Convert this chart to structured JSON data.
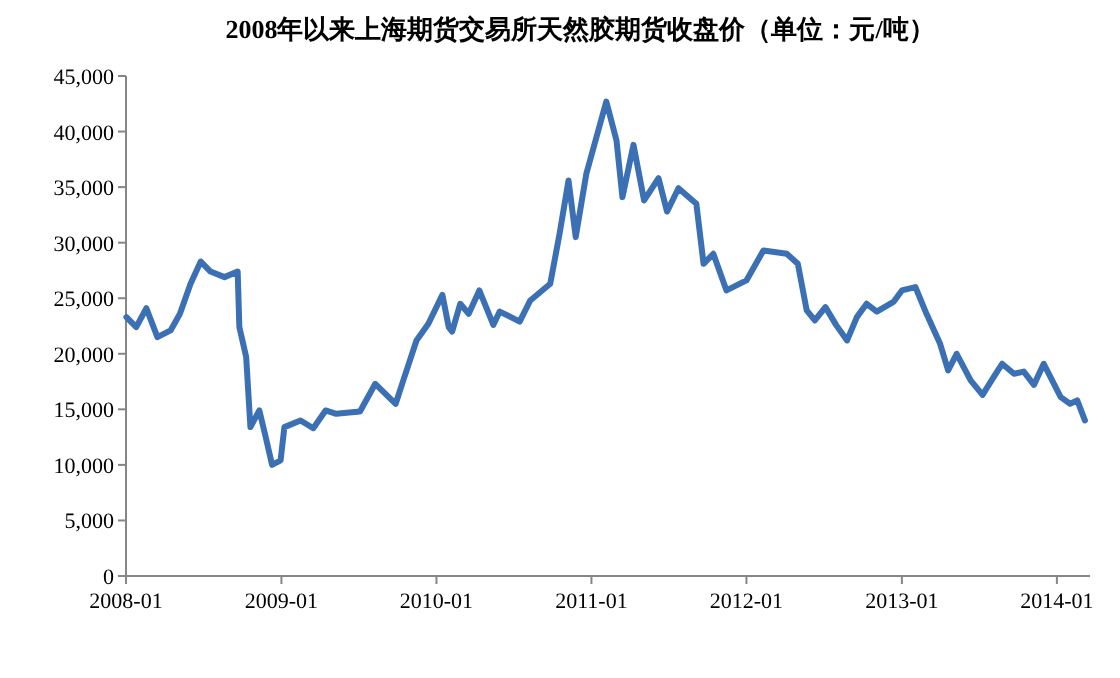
{
  "chart_data": {
    "type": "line",
    "title": "2008年以来上海期货交易所天然胶期货收盘价（单位：元/吨）",
    "xlim": [
      "2008-01-01",
      "2014-03-20"
    ],
    "xticks": [
      {
        "value": "2008-01-01",
        "label": "2008-01"
      },
      {
        "value": "2009-01-01",
        "label": "2009-01"
      },
      {
        "value": "2010-01-01",
        "label": "2010-01"
      },
      {
        "value": "2011-01-01",
        "label": "2011-01"
      },
      {
        "value": "2012-01-01",
        "label": "2012-01"
      },
      {
        "value": "2013-01-01",
        "label": "2013-01"
      },
      {
        "value": "2014-01-01",
        "label": "2014-01"
      }
    ],
    "ylim": [
      0,
      45000
    ],
    "yticks": [
      0,
      {
        "value": 5000,
        "label": "5,000"
      },
      {
        "value": 10000,
        "label": "10,000"
      },
      {
        "value": 15000,
        "label": "15,000"
      },
      {
        "value": 20000,
        "label": "20,000"
      },
      {
        "value": 25000,
        "label": "25,000"
      },
      {
        "value": 30000,
        "label": "30,000"
      },
      {
        "value": 35000,
        "label": "35,000"
      },
      {
        "value": 40000,
        "label": "40,000"
      },
      {
        "value": 45000,
        "label": "45,000"
      }
    ],
    "marker": "none",
    "line_style": "solid",
    "series": [
      {
        "color": "#3c70b4",
        "x": [
          "2008-01-02",
          "2008-01-25",
          "2008-02-18",
          "2008-03-15",
          "2008-04-15",
          "2008-05-07",
          "2008-06-01",
          "2008-06-25",
          "2008-07-18",
          "2008-08-20",
          "2008-09-20",
          "2008-09-24",
          "2008-10-10",
          "2008-10-20",
          "2008-11-10",
          "2008-11-25",
          "2008-12-10",
          "2008-12-30",
          "2009-01-08",
          "2009-02-15",
          "2009-03-17",
          "2009-04-15",
          "2009-05-10",
          "2009-07-05",
          "2009-08-10",
          "2009-09-27",
          "2009-10-15",
          "2009-11-15",
          "2009-12-13",
          "2010-01-15",
          "2010-01-30",
          "2010-02-07",
          "2010-02-26",
          "2010-03-18",
          "2010-04-12",
          "2010-05-15",
          "2010-05-30",
          "2010-07-16",
          "2010-08-10",
          "2010-09-26",
          "2010-10-18",
          "2010-11-08",
          "2010-11-25",
          "2010-12-20",
          "2011-02-05",
          "2011-03-01",
          "2011-03-15",
          "2011-04-10",
          "2011-05-05",
          "2011-06-08",
          "2011-06-28",
          "2011-07-25",
          "2011-09-05",
          "2011-09-22",
          "2011-10-15",
          "2011-11-15",
          "2012-01-01",
          "2012-02-10",
          "2012-04-05",
          "2012-05-01",
          "2012-05-22",
          "2012-06-10",
          "2012-07-05",
          "2012-07-30",
          "2012-08-25",
          "2012-09-17",
          "2012-10-10",
          "2012-11-03",
          "2012-12-13",
          "2013-01-01",
          "2013-02-02",
          "2013-02-28",
          "2013-04-01",
          "2013-04-20",
          "2013-05-10",
          "2013-06-12",
          "2013-07-10",
          "2013-08-05",
          "2013-08-25",
          "2013-09-22",
          "2013-10-15",
          "2013-11-08",
          "2013-12-01",
          "2014-01-10",
          "2014-02-01",
          "2014-02-18",
          "2014-03-08"
        ],
        "values": [
          23300,
          22400,
          24100,
          21500,
          22100,
          23600,
          26300,
          28300,
          27400,
          26900,
          27400,
          22400,
          19700,
          13400,
          14900,
          12500,
          10000,
          10400,
          13400,
          14000,
          13300,
          14900,
          14600,
          14800,
          17300,
          15500,
          17600,
          21200,
          22700,
          25300,
          22400,
          22000,
          24500,
          23600,
          25700,
          22600,
          23800,
          22900,
          24800,
          26300,
          30800,
          35600,
          30500,
          36200,
          42700,
          39200,
          34100,
          38800,
          33800,
          35800,
          32800,
          34900,
          33500,
          28100,
          29000,
          25700,
          26600,
          29300,
          29000,
          28100,
          23900,
          23000,
          24200,
          22600,
          21200,
          23300,
          24500,
          23800,
          24700,
          25700,
          26000,
          23600,
          20900,
          18500,
          20000,
          17600,
          16300,
          17900,
          19100,
          18200,
          18400,
          17200,
          19100,
          16100,
          15500,
          15800,
          14000
        ]
      }
    ]
  }
}
